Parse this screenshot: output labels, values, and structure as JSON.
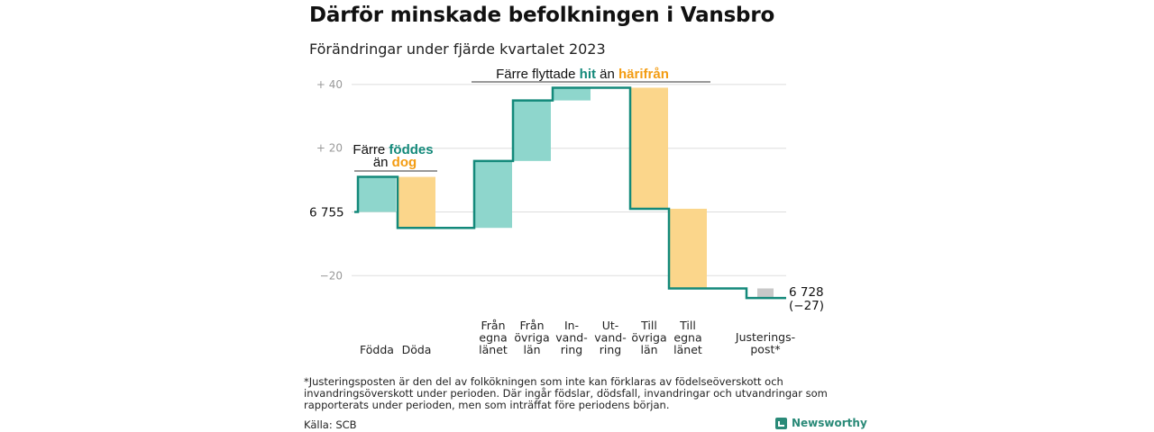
{
  "title": "Därför minskade befolkningen i Vansbro",
  "subtitle": "Förändringar under fjärde kvartalet 2023",
  "footnote": "*Justeringsposten är den del av folkökningen som inte kan förklaras av födelseöverskott och invandringsöverskott under perioden. Där ingår födslar, dödsfall, invandringar och utvandringar som rapporterats under perioden, men som inträffat före periodens början.",
  "source": "Källa: SCB",
  "brand": "Newsworthy",
  "colors": {
    "increase": "#8ed6cc",
    "decrease": "#fbd68b",
    "adjustment": "#c8c8c8",
    "line": "#13897a",
    "teal_text": "#13897a",
    "orange_text": "#f39c12",
    "grid": "#dddddd"
  },
  "chart_data": {
    "type": "waterfall",
    "baseline": 6755,
    "ylim": [
      -27,
      45
    ],
    "yticks": [
      {
        "value": 40,
        "label": "+ 40"
      },
      {
        "value": 20,
        "label": "+ 20"
      },
      {
        "value": -20,
        "label": "−20"
      }
    ],
    "start_label": "6 755",
    "end_label": "6 728",
    "end_change_label": "(−27)",
    "steps": [
      {
        "label": [
          "Födda"
        ],
        "change": 11,
        "kind": "increase"
      },
      {
        "label": [
          "Döda"
        ],
        "change": -16,
        "kind": "decrease"
      },
      {
        "label": [
          "Från",
          "egna",
          "länet"
        ],
        "change": 21,
        "kind": "increase"
      },
      {
        "label": [
          "Från",
          "övriga",
          "län"
        ],
        "change": 19,
        "kind": "increase"
      },
      {
        "label": [
          "In-",
          "vand-",
          "ring"
        ],
        "change": 4,
        "kind": "increase"
      },
      {
        "label": [
          "Ut-",
          "vand-",
          "ring"
        ],
        "change": 0,
        "kind": "decrease"
      },
      {
        "label": [
          "Till",
          "övriga",
          "län"
        ],
        "change": -38,
        "kind": "decrease"
      },
      {
        "label": [
          "Till",
          "egna",
          "länet"
        ],
        "change": -25,
        "kind": "decrease"
      },
      {
        "label": [
          "Justerings-",
          "post*"
        ],
        "change": -3,
        "kind": "adjustment"
      }
    ],
    "annotations": {
      "births": {
        "prefix": "Färre",
        "word1": "föddes",
        "joiner": "än",
        "word2": "dog"
      },
      "migration": {
        "prefix": "Färre flyttade",
        "word1": "hit",
        "joiner": "än",
        "word2": "härifrån"
      }
    }
  }
}
